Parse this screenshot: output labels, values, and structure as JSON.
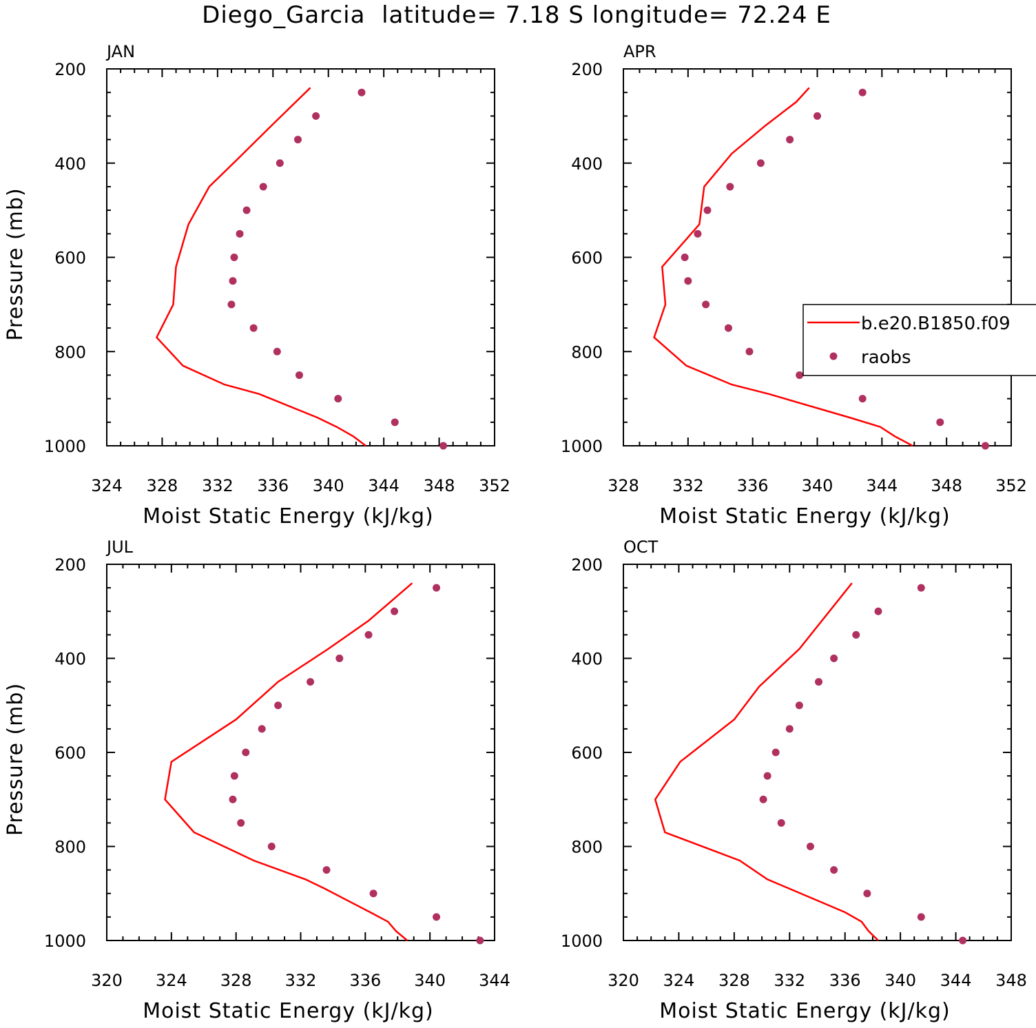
{
  "figure": {
    "title": "Diego_Garcia  latitude= 7.18 S longitude= 72.24 E"
  },
  "colors": {
    "model_line": "#ff0000",
    "raobs_marker": "#b03060",
    "axis": "#000000"
  },
  "legend": {
    "placement": "right side of APR panel",
    "entries": [
      {
        "label": "b.e20.B1850.f09",
        "style": "line"
      },
      {
        "label": "raobs",
        "style": "marker"
      }
    ]
  },
  "chart_data": [
    {
      "type": "line",
      "title": "JAN",
      "xlabel": "Moist Static Energy (kJ/kg)",
      "ylabel": "Pressure (mb)",
      "xlim": [
        324,
        352
      ],
      "ylim": [
        1000,
        200
      ],
      "xticks": [
        324,
        328,
        332,
        336,
        340,
        344,
        348,
        352
      ],
      "yticks": [
        200,
        400,
        600,
        800,
        1000
      ],
      "grid": false,
      "series": [
        {
          "name": "b.e20.B1850.f09",
          "kind": "line",
          "x": [
            342.7,
            341.8,
            340.6,
            339.2,
            335.0,
            332.5,
            329.5,
            327.6,
            328.8,
            329.0,
            329.9,
            331.4,
            333.5,
            335.9,
            338.7
          ],
          "y": [
            1000,
            980,
            960,
            940,
            890,
            870,
            830,
            770,
            700,
            620,
            530,
            450,
            390,
            320,
            240
          ]
        },
        {
          "name": "raobs",
          "kind": "scatter",
          "x": [
            348.3,
            344.8,
            340.7,
            337.9,
            336.3,
            334.6,
            333.0,
            333.1,
            333.2,
            333.6,
            334.1,
            335.3,
            336.5,
            337.8,
            339.1,
            342.4
          ],
          "y": [
            1000,
            950,
            900,
            850,
            800,
            750,
            700,
            650,
            600,
            550,
            500,
            450,
            400,
            350,
            300,
            250
          ]
        }
      ]
    },
    {
      "type": "line",
      "title": "APR",
      "xlabel": "Moist Static Energy (kJ/kg)",
      "ylabel": "",
      "xlim": [
        328,
        352
      ],
      "ylim": [
        1000,
        200
      ],
      "xticks": [
        328,
        332,
        336,
        340,
        344,
        348,
        352
      ],
      "yticks": [
        200,
        400,
        600,
        800,
        1000
      ],
      "grid": false,
      "series": [
        {
          "name": "b.e20.B1850.f09",
          "kind": "line",
          "x": [
            345.9,
            344.8,
            343.9,
            342.0,
            337.0,
            334.7,
            331.9,
            329.9,
            330.6,
            330.4,
            332.7,
            333.0,
            334.7,
            336.8,
            338.7,
            339.5
          ],
          "y": [
            1000,
            980,
            960,
            940,
            890,
            870,
            830,
            770,
            700,
            620,
            530,
            450,
            380,
            320,
            270,
            240
          ]
        },
        {
          "name": "raobs",
          "kind": "scatter",
          "x": [
            350.4,
            347.6,
            342.8,
            338.9,
            335.8,
            334.5,
            333.1,
            332.0,
            331.8,
            332.6,
            333.2,
            334.6,
            336.5,
            338.3,
            340.0,
            342.8
          ],
          "y": [
            1000,
            950,
            900,
            850,
            800,
            750,
            700,
            650,
            600,
            550,
            500,
            450,
            400,
            350,
            300,
            250
          ]
        }
      ]
    },
    {
      "type": "line",
      "title": "JUL",
      "xlabel": "Moist Static Energy (kJ/kg)",
      "ylabel": "Pressure (mb)",
      "xlim": [
        320,
        344
      ],
      "ylim": [
        1000,
        200
      ],
      "xticks": [
        320,
        324,
        328,
        332,
        336,
        340,
        344
      ],
      "yticks": [
        200,
        400,
        600,
        800,
        1000
      ],
      "grid": false,
      "series": [
        {
          "name": "b.e20.B1850.f09",
          "kind": "line",
          "x": [
            338.6,
            337.9,
            337.4,
            336.3,
            333.5,
            332.3,
            329.1,
            325.4,
            323.6,
            324.0,
            328.0,
            330.6,
            333.7,
            336.2,
            338.9
          ],
          "y": [
            1000,
            980,
            960,
            940,
            890,
            870,
            830,
            770,
            700,
            620,
            530,
            450,
            380,
            320,
            240
          ]
        },
        {
          "name": "raobs",
          "kind": "scatter",
          "x": [
            343.1,
            340.4,
            336.5,
            333.6,
            330.2,
            328.3,
            327.8,
            327.9,
            328.6,
            329.6,
            330.6,
            332.6,
            334.4,
            336.2,
            337.8,
            340.4
          ],
          "y": [
            1000,
            950,
            900,
            850,
            800,
            750,
            700,
            650,
            600,
            550,
            500,
            450,
            400,
            350,
            300,
            250
          ]
        }
      ]
    },
    {
      "type": "line",
      "title": "OCT",
      "xlabel": "Moist Static Energy (kJ/kg)",
      "ylabel": "",
      "xlim": [
        320,
        348
      ],
      "ylim": [
        1000,
        200
      ],
      "xticks": [
        320,
        324,
        328,
        332,
        336,
        340,
        344,
        348
      ],
      "yticks": [
        200,
        400,
        600,
        800,
        1000
      ],
      "grid": false,
      "series": [
        {
          "name": "b.e20.B1850.f09",
          "kind": "line",
          "x": [
            338.4,
            337.7,
            337.2,
            336.0,
            332.0,
            330.4,
            328.4,
            323.0,
            322.3,
            324.1,
            328.0,
            329.8,
            332.7,
            336.5
          ],
          "y": [
            1000,
            980,
            960,
            940,
            890,
            870,
            830,
            770,
            700,
            620,
            530,
            460,
            380,
            240
          ]
        },
        {
          "name": "raobs",
          "kind": "scatter",
          "x": [
            344.5,
            341.5,
            337.6,
            335.2,
            333.5,
            331.4,
            330.1,
            330.4,
            331.0,
            332.0,
            332.7,
            334.1,
            335.2,
            336.8,
            338.4,
            341.5
          ],
          "y": [
            1000,
            950,
            900,
            850,
            800,
            750,
            700,
            650,
            600,
            550,
            500,
            450,
            400,
            350,
            300,
            250
          ]
        }
      ]
    }
  ]
}
